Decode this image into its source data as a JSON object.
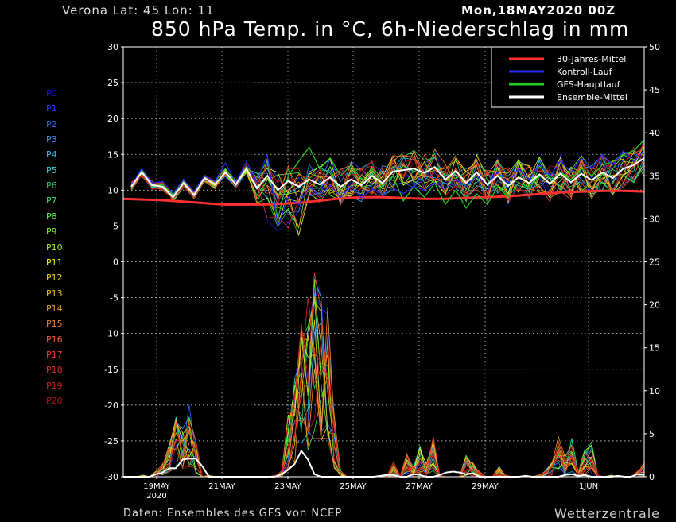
{
  "header": {
    "location": "Verona   Lat: 45 Lon: 11",
    "run": "Mon,18MAY2020 00Z",
    "title": "850 hPa Temp. in °C, 6h-Niederschlag in mm"
  },
  "footer": {
    "source": "Daten: Ensembles des GFS von NCEP",
    "brand": "Wetterzentrale"
  },
  "members": [
    {
      "label": "P0",
      "color": "#1414d2"
    },
    {
      "label": "P1",
      "color": "#1e3cf0"
    },
    {
      "label": "P2",
      "color": "#2860ff"
    },
    {
      "label": "P3",
      "color": "#2c8cf0"
    },
    {
      "label": "P4",
      "color": "#30b4f0"
    },
    {
      "label": "P5",
      "color": "#30d2d2"
    },
    {
      "label": "P6",
      "color": "#1ec864"
    },
    {
      "label": "P7",
      "color": "#1ee650"
    },
    {
      "label": "P8",
      "color": "#50f03c"
    },
    {
      "label": "P9",
      "color": "#78f028"
    },
    {
      "label": "P10",
      "color": "#a0f01e"
    },
    {
      "label": "P11",
      "color": "#f0f01e"
    },
    {
      "label": "P12",
      "color": "#f0d21e"
    },
    {
      "label": "P13",
      "color": "#f0b41e"
    },
    {
      "label": "P14",
      "color": "#f0961e"
    },
    {
      "label": "P15",
      "color": "#f07828"
    },
    {
      "label": "P16",
      "color": "#f05a28"
    },
    {
      "label": "P17",
      "color": "#e63c28"
    },
    {
      "label": "P18",
      "color": "#dc2828"
    },
    {
      "label": "P19",
      "color": "#c81e1e"
    },
    {
      "label": "P20",
      "color": "#b41414"
    }
  ],
  "chart_data": {
    "type": "line",
    "title": "850 hPa Temp. in °C, 6h-Niederschlag in mm",
    "x_ticks": [
      "19MAY",
      "21MAY",
      "23MAY",
      "25MAY",
      "27MAY",
      "29MAY",
      "1JUN"
    ],
    "x_tick_sub": "2020",
    "y_left": {
      "min": -30,
      "max": 30,
      "ticks": [
        -30,
        -25,
        -20,
        -15,
        -10,
        -5,
        0,
        5,
        10,
        15,
        20,
        25,
        30
      ]
    },
    "y_right": {
      "min": 0,
      "max": 50,
      "ticks": [
        0,
        5,
        10,
        15,
        20,
        25,
        30,
        35,
        40,
        45,
        50
      ]
    },
    "grid": true,
    "legend_position": "top-right",
    "legend": [
      {
        "name": "30-Jahres-Mittel",
        "color": "#ff3030"
      },
      {
        "name": "Kontroll-Lauf",
        "color": "#2828ff"
      },
      {
        "name": "GFS-Hauptlauf",
        "color": "#20d020"
      },
      {
        "name": "Ensemble-Mittel",
        "color": "#ffffff"
      }
    ],
    "temperature_series": {
      "climate_mean": [
        8.8,
        8.7,
        8.6,
        8.4,
        8.2,
        8.0,
        8.0,
        8.0,
        8.1,
        8.3,
        8.6,
        8.9,
        9.0,
        9.0,
        8.9,
        8.8,
        8.8,
        8.9,
        9.0,
        9.1,
        9.3,
        9.5,
        9.7,
        9.8,
        9.9,
        9.9,
        9.8
      ],
      "ensemble_mean": [
        10.5,
        12.5,
        10.7,
        10.5,
        9.0,
        11.0,
        9.3,
        11.7,
        10.8,
        12.5,
        10.8,
        13.0,
        10.3,
        12.0,
        10.0,
        11.3,
        10.5,
        11.5,
        10.8,
        11.8,
        10.5,
        11.5,
        10.7,
        12.0,
        11.0,
        12.6,
        12.8,
        13.0,
        12.4,
        13.2,
        11.5,
        12.7,
        11.0,
        12.5,
        10.8,
        12.0,
        10.6,
        11.8,
        11.0,
        12.2,
        10.9,
        12.3,
        11.1,
        12.3,
        11.4,
        12.5,
        11.7,
        13.0,
        13.5,
        14.5
      ],
      "control_run": [
        10.7,
        13.0,
        11.0,
        11.2,
        9.5,
        11.5,
        9.8,
        12.0,
        11.2,
        13.8,
        11.0,
        14.0,
        11.2,
        15.0,
        5.0,
        9.0,
        8.0,
        10.5,
        9.2,
        10.7,
        9.0,
        10.5,
        8.9,
        10.2,
        9.3,
        10.3,
        9.5,
        10.5,
        10.0,
        11.0,
        10.2,
        11.5,
        10.5,
        12.0,
        10.8,
        12.5,
        11.0,
        13.0,
        11.5,
        13.5,
        12.0,
        14.0,
        12.5,
        14.5,
        13.0,
        15.0,
        13.5,
        15.5,
        14.0,
        15.5
      ],
      "gfs_main": [
        10.4,
        12.8,
        10.5,
        10.8,
        9.3,
        11.2,
        9.4,
        12.0,
        11.2,
        13.0,
        11.0,
        13.2,
        11.8,
        14.0,
        6.0,
        12.0,
        14.0,
        16.0,
        13.0,
        14.5,
        12.0,
        13.5,
        11.5,
        13.0,
        10.5,
        12.0,
        8.5,
        10.5,
        9.0,
        11.0,
        8.0,
        10.0,
        7.5,
        9.5,
        8.0,
        10.5,
        9.0,
        11.0,
        10.5,
        12.0,
        11.0,
        12.5,
        11.5,
        13.0,
        12.0,
        13.5,
        14.0,
        15.0,
        15.5,
        17.0
      ]
    },
    "precipitation_series": {
      "ensemble_mean": [
        0,
        0,
        0,
        0,
        0,
        0.3,
        0.5,
        1.0,
        1.0,
        2.0,
        2.1,
        2.1,
        1.2,
        0,
        0,
        0,
        0,
        0,
        0,
        0,
        0,
        0,
        0,
        0,
        0.3,
        0.8,
        1.5,
        3.0,
        2.0,
        0.3,
        0,
        0,
        0,
        0,
        0,
        0,
        0,
        0,
        0,
        0.1,
        0.2,
        0.2,
        0,
        0,
        0.3,
        0.2,
        0,
        0,
        0.2,
        0.5,
        0.6,
        0.5,
        0.3,
        0.4,
        0,
        0,
        0,
        0,
        0,
        0,
        0,
        0.1,
        0,
        0,
        0,
        0,
        0,
        0.2,
        0.3,
        0.1,
        0.2,
        0,
        0,
        0,
        0,
        0.1,
        0,
        0,
        0.3,
        0.2
      ],
      "max_member": [
        0,
        0.2,
        0,
        0.5,
        0,
        1.0,
        2.0,
        5.0,
        8.0,
        6.0,
        9.0,
        4.5,
        0,
        0.5,
        0,
        0,
        0,
        0,
        0,
        0,
        0,
        0,
        0,
        0.5,
        1.0,
        8.0,
        12.0,
        19.0,
        22.0,
        29.0,
        23.0,
        20.0,
        8.0,
        1.0,
        0,
        0,
        0,
        0,
        0,
        0,
        0.5,
        2.0,
        0.5,
        3.0,
        1.5,
        4.0,
        2.0,
        5.0,
        0.5,
        0,
        0,
        0,
        3.0,
        2.0,
        1.0,
        0,
        0,
        1.5,
        0.5,
        0,
        0,
        0,
        0,
        0.5,
        1.0,
        2.0,
        5.0,
        3.0,
        5.0,
        1.0,
        3.5,
        4.5,
        0.5,
        0,
        0.5,
        0,
        0,
        0,
        1.0,
        2.0
      ]
    }
  }
}
